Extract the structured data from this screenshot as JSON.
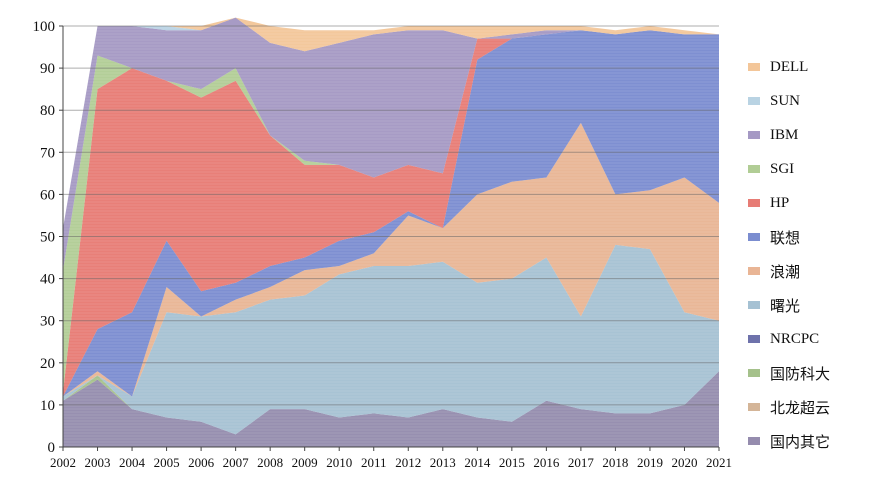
{
  "chart_data": {
    "type": "area",
    "title": "",
    "xlabel": "",
    "ylabel": "",
    "ylim": [
      0,
      100
    ],
    "yticks": [
      0,
      10,
      20,
      30,
      40,
      50,
      60,
      70,
      80,
      90,
      100
    ],
    "x": [
      "2002",
      "2003",
      "2004",
      "2005",
      "2006",
      "2007",
      "2008",
      "2009",
      "2010",
      "2011",
      "2012",
      "2013",
      "2014",
      "2015",
      "2016",
      "2017",
      "2018",
      "2019",
      "2020",
      "2021"
    ],
    "stacking": "cumulative",
    "legend_position": "right",
    "series": [
      {
        "name": "国内其它",
        "color": "#7a6f9a",
        "values": [
          11,
          16,
          9,
          7,
          6,
          3,
          9,
          9,
          7,
          8,
          7,
          9,
          7,
          6,
          11,
          9,
          8,
          8,
          10,
          18
        ]
      },
      {
        "name": "北龙超云",
        "color": "#c9a27e",
        "values": [
          0,
          0,
          0,
          0,
          0,
          0,
          0,
          0,
          0,
          0,
          0,
          0,
          0,
          0,
          0,
          0,
          0,
          0,
          0,
          0
        ]
      },
      {
        "name": "国防科大",
        "color": "#8fb16e",
        "values": [
          0,
          1,
          0,
          0,
          0,
          0,
          0,
          0,
          0,
          0,
          0,
          0,
          0,
          0,
          0,
          0,
          0,
          0,
          0,
          0
        ]
      },
      {
        "name": "NRCPC",
        "color": "#4a4f96",
        "values": [
          0,
          0,
          0,
          0,
          0,
          0,
          0,
          0,
          0,
          0,
          0,
          0,
          0,
          0,
          0,
          0,
          0,
          0,
          0,
          0
        ]
      },
      {
        "name": "曙光",
        "color": "#8fb2c8",
        "values": [
          1,
          0,
          3,
          25,
          25,
          29,
          26,
          27,
          34,
          35,
          36,
          35,
          32,
          34,
          34,
          22,
          40,
          39,
          22,
          12
        ]
      },
      {
        "name": "浪潮",
        "color": "#e3a37a",
        "values": [
          0,
          1,
          0,
          6,
          0,
          3,
          3,
          6,
          2,
          3,
          12,
          8,
          21,
          23,
          19,
          46,
          12,
          14,
          32,
          28
        ]
      },
      {
        "name": "联想",
        "color": "#5a70c4",
        "values": [
          0,
          10,
          20,
          11,
          6,
          4,
          5,
          3,
          6,
          5,
          1,
          0,
          32,
          34,
          34,
          22,
          38,
          38,
          34,
          40
        ]
      },
      {
        "name": "HP",
        "color": "#e15b52",
        "values": [
          1,
          57,
          58,
          38,
          46,
          48,
          31,
          22,
          18,
          13,
          11,
          13,
          5,
          0,
          0,
          0,
          0,
          0,
          0,
          0
        ]
      },
      {
        "name": "SGI",
        "color": "#9ec07b",
        "values": [
          29,
          8,
          0,
          0,
          2,
          3,
          0,
          1,
          0,
          0,
          0,
          0,
          0,
          0,
          0,
          0,
          0,
          0,
          0,
          0
        ]
      },
      {
        "name": "IBM",
        "color": "#8e7fb5",
        "values": [
          10,
          7,
          10,
          12,
          14,
          12,
          22,
          26,
          29,
          34,
          32,
          34,
          0,
          1,
          1,
          0,
          0,
          0,
          0,
          0
        ]
      },
      {
        "name": "SUN",
        "color": "#a8c8dc",
        "values": [
          0,
          0,
          0,
          1,
          0,
          0,
          0,
          0,
          0,
          0,
          0,
          0,
          0,
          0,
          0,
          0,
          0,
          0,
          0,
          0
        ]
      },
      {
        "name": "DELL",
        "color": "#f0b880",
        "values": [
          0,
          0,
          0,
          0,
          1,
          0,
          4,
          5,
          3,
          1,
          1,
          1,
          3,
          2,
          1,
          1,
          1,
          1,
          1,
          0
        ]
      }
    ],
    "legend_order": [
      "DELL",
      "SUN",
      "IBM",
      "SGI",
      "HP",
      "联想",
      "浪潮",
      "曙光",
      "NRCPC",
      "国防科大",
      "北龙超云",
      "国内其它"
    ]
  }
}
